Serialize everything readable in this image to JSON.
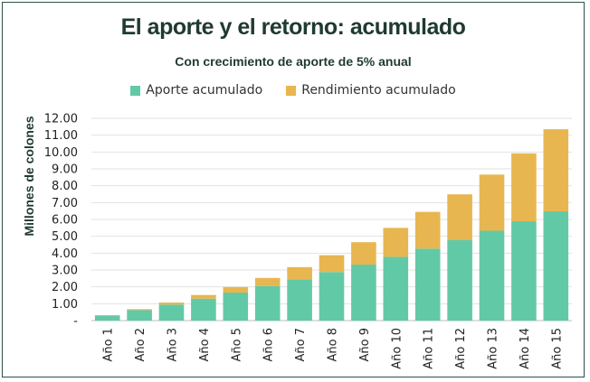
{
  "chart_data": {
    "type": "bar",
    "stacked": true,
    "title": "El aporte y el retorno: acumulado",
    "subtitle": "Con crecimiento de aporte de 5% anual",
    "xlabel": "",
    "ylabel": "Millones de colones",
    "ylim": [
      0,
      12
    ],
    "yticks": [
      "-",
      "1.00",
      "2.00",
      "3.00",
      "4.00",
      "5.00",
      "6.00",
      "7.00",
      "8.00",
      "9.00",
      "10.00",
      "11.00",
      "12.00"
    ],
    "grid": true,
    "legend_position": "top-center",
    "categories": [
      "Año 1",
      "Año 2",
      "Año 3",
      "Año 4",
      "Año 5",
      "Año 6",
      "Año 7",
      "Año 8",
      "Año 9",
      "Año 10",
      "Año 11",
      "Año 12",
      "Año 13",
      "Año 14",
      "Año 15"
    ],
    "series": [
      {
        "name": "Aporte acumulado",
        "color": "#62c9a6",
        "values": [
          0.3,
          0.62,
          0.95,
          1.3,
          1.66,
          2.05,
          2.45,
          2.88,
          3.32,
          3.78,
          4.27,
          4.79,
          5.33,
          5.89,
          6.48
        ]
      },
      {
        "name": "Rendimiento acumulado",
        "color": "#e8b650",
        "values": [
          0.02,
          0.06,
          0.12,
          0.22,
          0.33,
          0.48,
          0.72,
          1.0,
          1.33,
          1.72,
          2.18,
          2.7,
          3.33,
          4.03,
          4.87
        ]
      }
    ]
  }
}
